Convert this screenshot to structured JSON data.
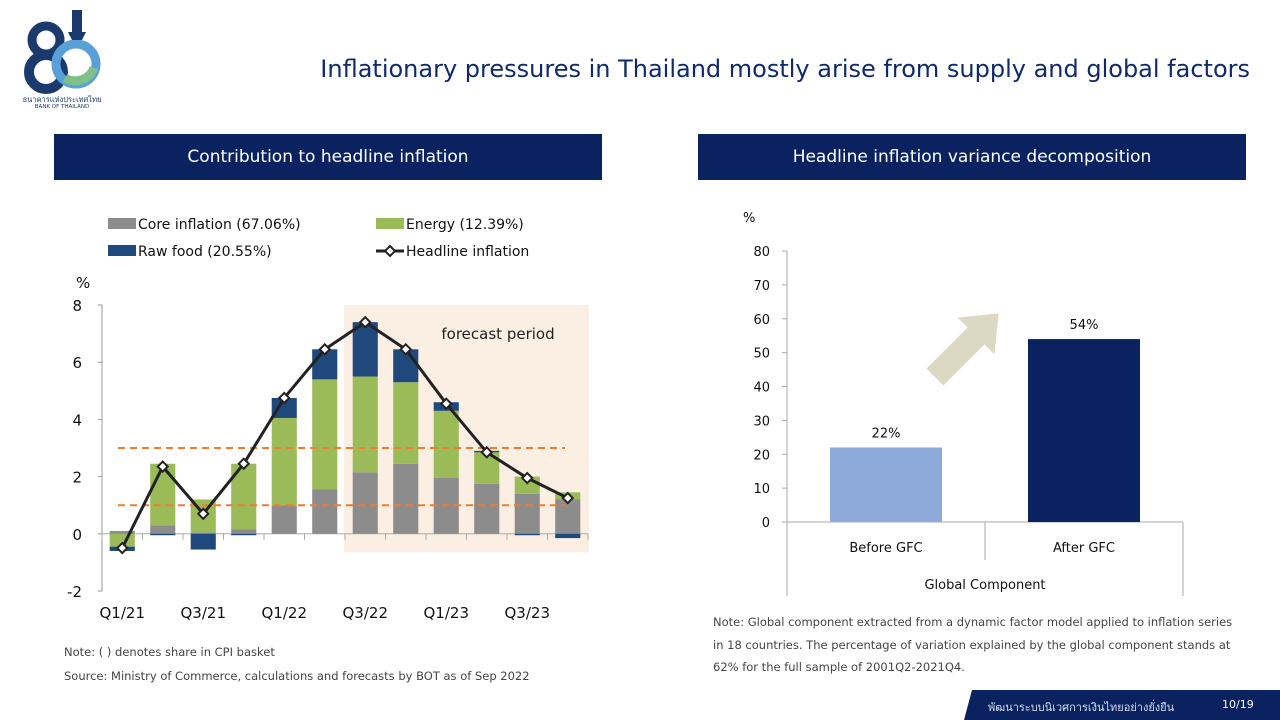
{
  "header": {
    "logo_thai": "ธนาคารแห่งประเทศไทย",
    "logo_english": "BANK OF THAILAND",
    "title": "Inflationary pressures in Thailand mostly arise from supply and global factors"
  },
  "left_panel": {
    "title": "Contribution to headline inflation",
    "note": "Note: ( ) denotes share in CPI basket",
    "source": "Source: Ministry of Commerce, calculations and forecasts by BOT as of Sep 2022"
  },
  "right_panel": {
    "title": "Headline inflation variance decomposition",
    "note": "Note: Global component extracted from a dynamic factor model applied to inflation series in 18 countries. The percentage of variation explained by the global component stands at 62% for the full sample of 2001Q2-2021Q4."
  },
  "footer": {
    "text": "พัฒนาระบบนิเวศการเงินไทยอย่างยั่งยืน",
    "page": "10/19"
  },
  "colors": {
    "navy": "#0b2260",
    "core": "#8c8c8c",
    "energy": "#9bbb59",
    "raw_food": "#1f497d",
    "before_gfc": "#8eaadb",
    "after_gfc": "#0b2260",
    "forecast_band": "#fbeee2",
    "target_line": "#ed7d31"
  },
  "chart_data": [
    {
      "type": "bar",
      "stacked": true,
      "categories": [
        "Q1/21",
        "Q2/21",
        "Q3/21",
        "Q4/21",
        "Q1/22",
        "Q2/22",
        "Q3/22",
        "Q4/22",
        "Q1/23",
        "Q2/23",
        "Q3/23",
        "Q4/23"
      ],
      "tick_labels": [
        "Q1/21",
        "Q3/21",
        "Q1/22",
        "Q3/22",
        "Q1/23",
        "Q3/23"
      ],
      "series": [
        {
          "name": "Core inflation (67.06%)",
          "color": "#8c8c8c",
          "values": [
            0.1,
            0.3,
            0.05,
            0.15,
            1.0,
            1.55,
            2.15,
            2.45,
            1.95,
            1.75,
            1.4,
            1.2
          ]
        },
        {
          "name": "Energy (12.39%)",
          "color": "#9bbb59",
          "values": [
            -0.45,
            2.15,
            1.15,
            2.3,
            3.05,
            3.85,
            3.35,
            2.85,
            2.35,
            1.1,
            0.6,
            0.25
          ]
        },
        {
          "name": "Raw food (20.55%)",
          "color": "#1f497d",
          "values": [
            -0.15,
            -0.05,
            -0.55,
            -0.05,
            0.7,
            1.05,
            1.9,
            1.15,
            0.3,
            0.05,
            -0.05,
            -0.15
          ]
        }
      ],
      "line": {
        "name": "Headline inflation",
        "values": [
          -0.5,
          2.35,
          0.7,
          2.45,
          4.75,
          6.45,
          7.4,
          6.45,
          4.55,
          2.85,
          1.95,
          1.25
        ]
      },
      "target_band": [
        1.0,
        3.0
      ],
      "forecast_start_index": 6,
      "annotation": "forecast period",
      "ylabel": "%",
      "ylim": [
        -2,
        8
      ],
      "yticks": [
        -2,
        0,
        2,
        4,
        6,
        8
      ],
      "legend_position": "top"
    },
    {
      "type": "bar",
      "categories": [
        "Before GFC",
        "After GFC"
      ],
      "values": [
        22,
        54
      ],
      "value_labels": [
        "22%",
        "54%"
      ],
      "xlabel": "Global Component",
      "ylabel": "%",
      "ylim": [
        0,
        80
      ],
      "yticks": [
        0,
        10,
        20,
        30,
        40,
        50,
        60,
        70,
        80
      ]
    }
  ]
}
